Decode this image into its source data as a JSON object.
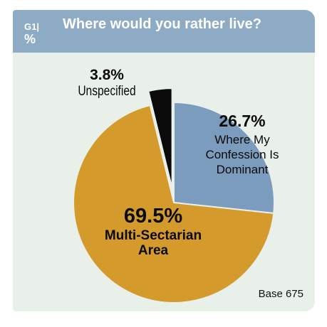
{
  "header": {
    "question_id": "G1|",
    "unit": "%",
    "title": "Where would you rather live?"
  },
  "footer": {
    "base": "Base 675"
  },
  "chart_data": {
    "type": "pie",
    "title": "Where would you rather live?",
    "unit": "%",
    "slices": [
      {
        "label": "Where My Confession Is Dominant",
        "value": 26.7,
        "value_label": "26.7%",
        "color": "#7c9cbd",
        "exploded": false
      },
      {
        "label": "Multi-Sectarian Area",
        "value": 69.5,
        "value_label": "69.5%",
        "color": "#d59a2c",
        "exploded": false
      },
      {
        "label": "Unspecified",
        "value": 3.8,
        "value_label": "3.8%",
        "color": "#0a0a0a",
        "exploded": true
      }
    ],
    "legend": "none"
  }
}
